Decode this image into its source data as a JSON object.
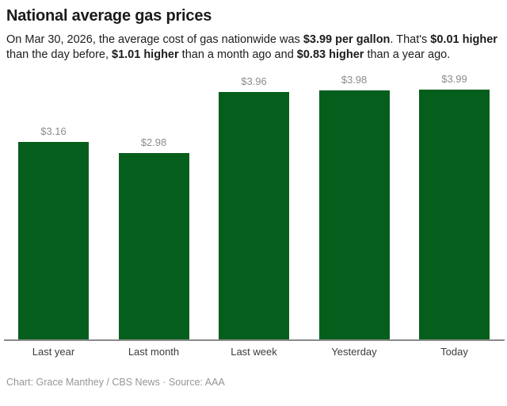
{
  "header": {
    "title": "National average gas prices"
  },
  "description": {
    "segments": [
      {
        "text": "On Mar 30, 2026, the average cost of gas nationwide was ",
        "bold": false
      },
      {
        "text": "$3.99 per gallon",
        "bold": true
      },
      {
        "text": ". That's ",
        "bold": false
      },
      {
        "text": "$0.01 higher",
        "bold": true
      },
      {
        "text": " than the day before, ",
        "bold": false
      },
      {
        "text": "$1.01 higher",
        "bold": true
      },
      {
        "text": " than a month ago and ",
        "bold": false
      },
      {
        "text": "$0.83 higher",
        "bold": true
      },
      {
        "text": " than a year ago.",
        "bold": false
      }
    ]
  },
  "chart_data": {
    "type": "bar",
    "title": "National average gas prices",
    "categories": [
      "Last year",
      "Last month",
      "Last week",
      "Yesterday",
      "Today"
    ],
    "values": [
      3.16,
      2.98,
      3.96,
      3.98,
      3.99
    ],
    "value_labels": [
      "$3.16",
      "$2.98",
      "$3.96",
      "$3.98",
      "$3.99"
    ],
    "xlabel": "",
    "ylabel": "",
    "ylim": [
      0,
      4.35
    ],
    "grid": false,
    "legend": false,
    "bar_color": "#065e1c",
    "value_label_color": "#8c8c8c",
    "axis_line_color": "#8a8a8a"
  },
  "footer": {
    "text": "Chart: Grace Manthey / CBS News · Source: AAA"
  }
}
